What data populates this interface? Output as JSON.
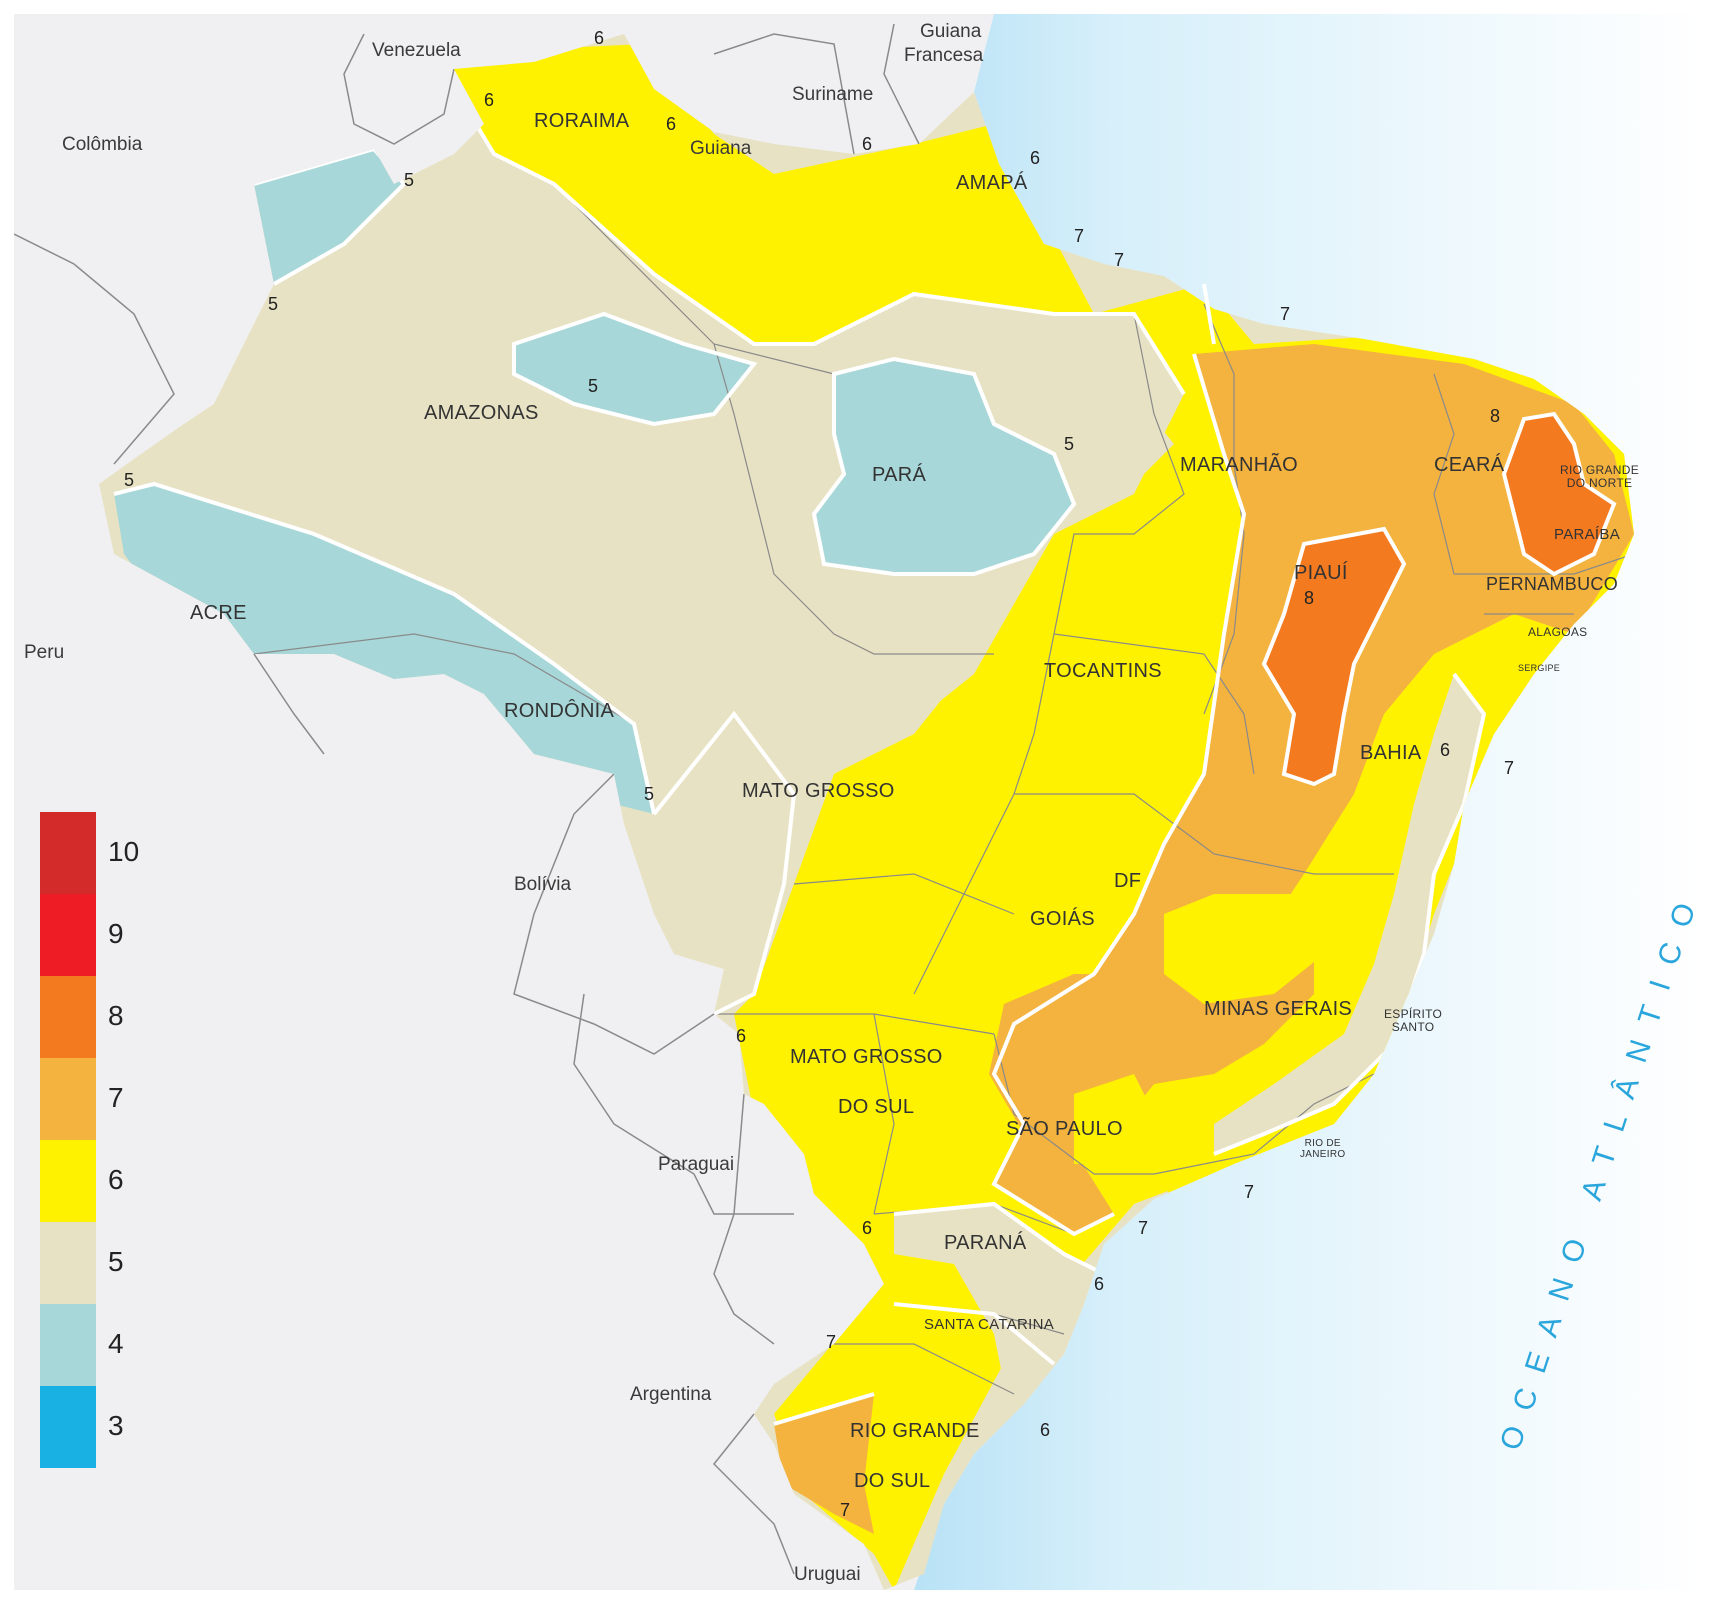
{
  "legend": {
    "items": [
      {
        "value": "10",
        "color": "#d32a2a"
      },
      {
        "value": "9",
        "color": "#ee1c25"
      },
      {
        "value": "8",
        "color": "#f47a20"
      },
      {
        "value": "7",
        "color": "#f4b23f"
      },
      {
        "value": "6",
        "color": "#fff200"
      },
      {
        "value": "5",
        "color": "#e8e2c4"
      },
      {
        "value": "4",
        "color": "#a7d7d8"
      },
      {
        "value": "3",
        "color": "#19b0e3"
      }
    ]
  },
  "countries": {
    "venezuela": "Venezuela",
    "guiana_francesa_line1": "Guiana",
    "guiana_francesa_line2": "Francesa",
    "suriname": "Suriname",
    "guiana": "Guiana",
    "colombia": "Colômbia",
    "peru": "Peru",
    "bolivia": "Bolívia",
    "paraguai": "Paraguai",
    "argentina": "Argentina",
    "uruguai": "Uruguai"
  },
  "states": {
    "roraima": "RORAIMA",
    "amapa": "AMAPÁ",
    "amazonas": "AMAZONAS",
    "para": "PARÁ",
    "maranhao": "MARANHÃO",
    "ceara": "CEARÁ",
    "rio_grande_do_norte_line1": "RIO GRANDE",
    "rio_grande_do_norte_line2": "DO NORTE",
    "paraiba": "PARAÍBA",
    "pernambuco": "PERNAMBUCO",
    "alagoas": "ALAGOAS",
    "sergipe": "SERGIPE",
    "piaui": "PIAUÍ",
    "acre": "ACRE",
    "rondonia": "RONDÔNIA",
    "tocantins": "TOCANTINS",
    "bahia": "BAHIA",
    "mato_grosso": "MATO  GROSSO",
    "df": "DF",
    "goias": "GOIÁS",
    "minas_gerais": "MINAS  GERAIS",
    "espirito_santo_line1": "ESPÍRITO",
    "espirito_santo_line2": "SANTO",
    "mato_grosso_do_sul_line1": "MATO  GROSSO",
    "mato_grosso_do_sul_line2": "DO SUL",
    "sao_paulo": "SÃO  PAULO",
    "rio_de_janeiro_line1": "RIO DE",
    "rio_de_janeiro_line2": "JANEIRO",
    "parana": "PARANÁ",
    "santa_catarina": "SANTA CATARINA",
    "rio_grande_do_sul_line1": "RIO GRANDE",
    "rio_grande_do_sul_line2": "DO  SUL"
  },
  "isolines": [
    "6",
    "6",
    "6",
    "6",
    "6",
    "5",
    "5",
    "7",
    "7",
    "7",
    "5",
    "5",
    "5",
    "8",
    "8",
    "6",
    "7",
    "5",
    "6",
    "7",
    "7",
    "6",
    "6",
    "7",
    "6",
    "7"
  ],
  "ocean": "OCEANO  ATLÂNTICO",
  "colors": {
    "ocean": "#cfeaf8",
    "land_outside": "#f0f0f2",
    "border": "#8a8a8a",
    "isoline": "#ffffff"
  }
}
